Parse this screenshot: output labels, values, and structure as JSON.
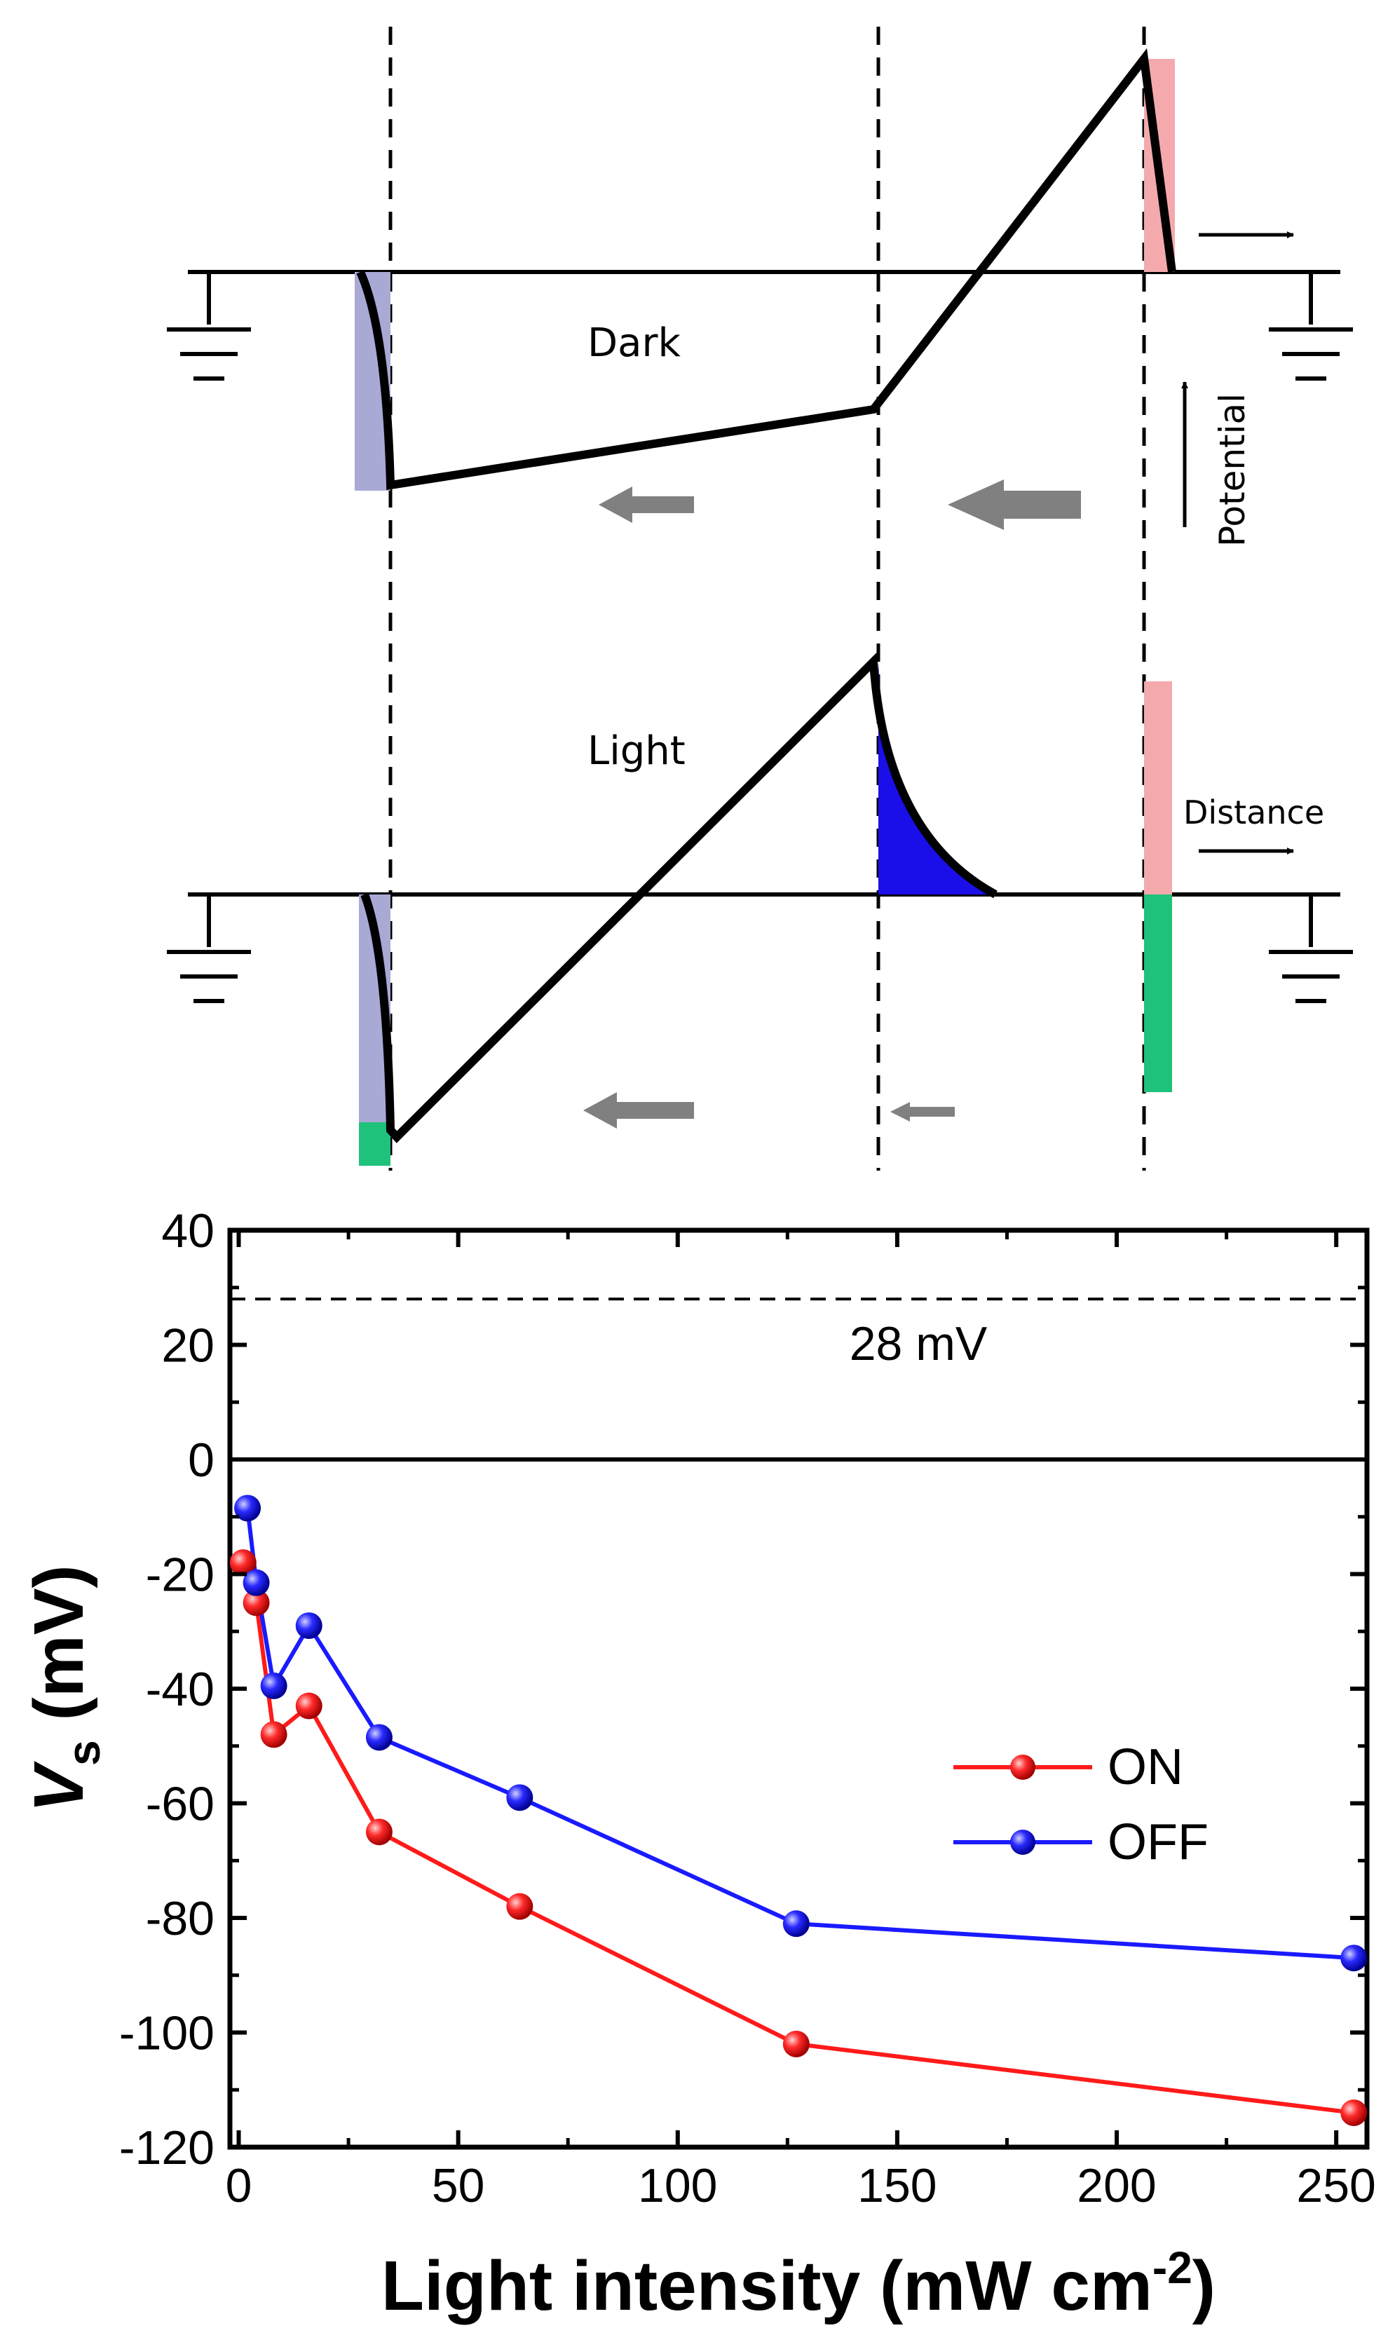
{
  "schematic": {
    "dark_panel": {
      "label": "Dark",
      "potential_label": "Potential"
    },
    "light_panel": {
      "label": "Light",
      "distance_label": "Distance"
    },
    "colors": {
      "trace": "#000000",
      "pink_fill": "#f4a9ad",
      "lavender_fill": "#a9a9d6",
      "blue_fill": "#1a0fe8",
      "green_fill": "#1ec27a",
      "gray_arrow": "#808080"
    }
  },
  "chart_data": {
    "type": "line",
    "xlabel": "Light intensity (mW cm",
    "xlabel_sup": "-2",
    "xlabel_close": ")",
    "ylabel_main": "V",
    "ylabel_sub": "s",
    "ylabel_unit": " (mV)",
    "xlim": [
      -2,
      257
    ],
    "ylim": [
      -120,
      40
    ],
    "x_ticks": [
      0,
      50,
      100,
      150,
      200,
      250
    ],
    "y_ticks": [
      40,
      20,
      0,
      -20,
      -40,
      -60,
      -80,
      -100,
      -120
    ],
    "reference_line": {
      "y": 28,
      "label": "28 mV",
      "style": "dashed"
    },
    "zero_line": {
      "y": 0,
      "style": "solid"
    },
    "legend_position": "right-middle",
    "series": [
      {
        "name": "ON",
        "color": "#ff1a1a",
        "points": [
          [
            1,
            -18
          ],
          [
            4,
            -25
          ],
          [
            8,
            -48
          ],
          [
            16,
            -43
          ],
          [
            32,
            -65
          ],
          [
            64,
            -78
          ],
          [
            127,
            -102
          ],
          [
            254,
            -114
          ]
        ]
      },
      {
        "name": "OFF",
        "color": "#1a1aff",
        "points": [
          [
            2,
            -8.5
          ],
          [
            4,
            -21.5
          ],
          [
            8,
            -39.5
          ],
          [
            16,
            -29
          ],
          [
            32,
            -48.5
          ],
          [
            64,
            -59
          ],
          [
            127,
            -81
          ],
          [
            254,
            -87
          ]
        ]
      }
    ]
  }
}
